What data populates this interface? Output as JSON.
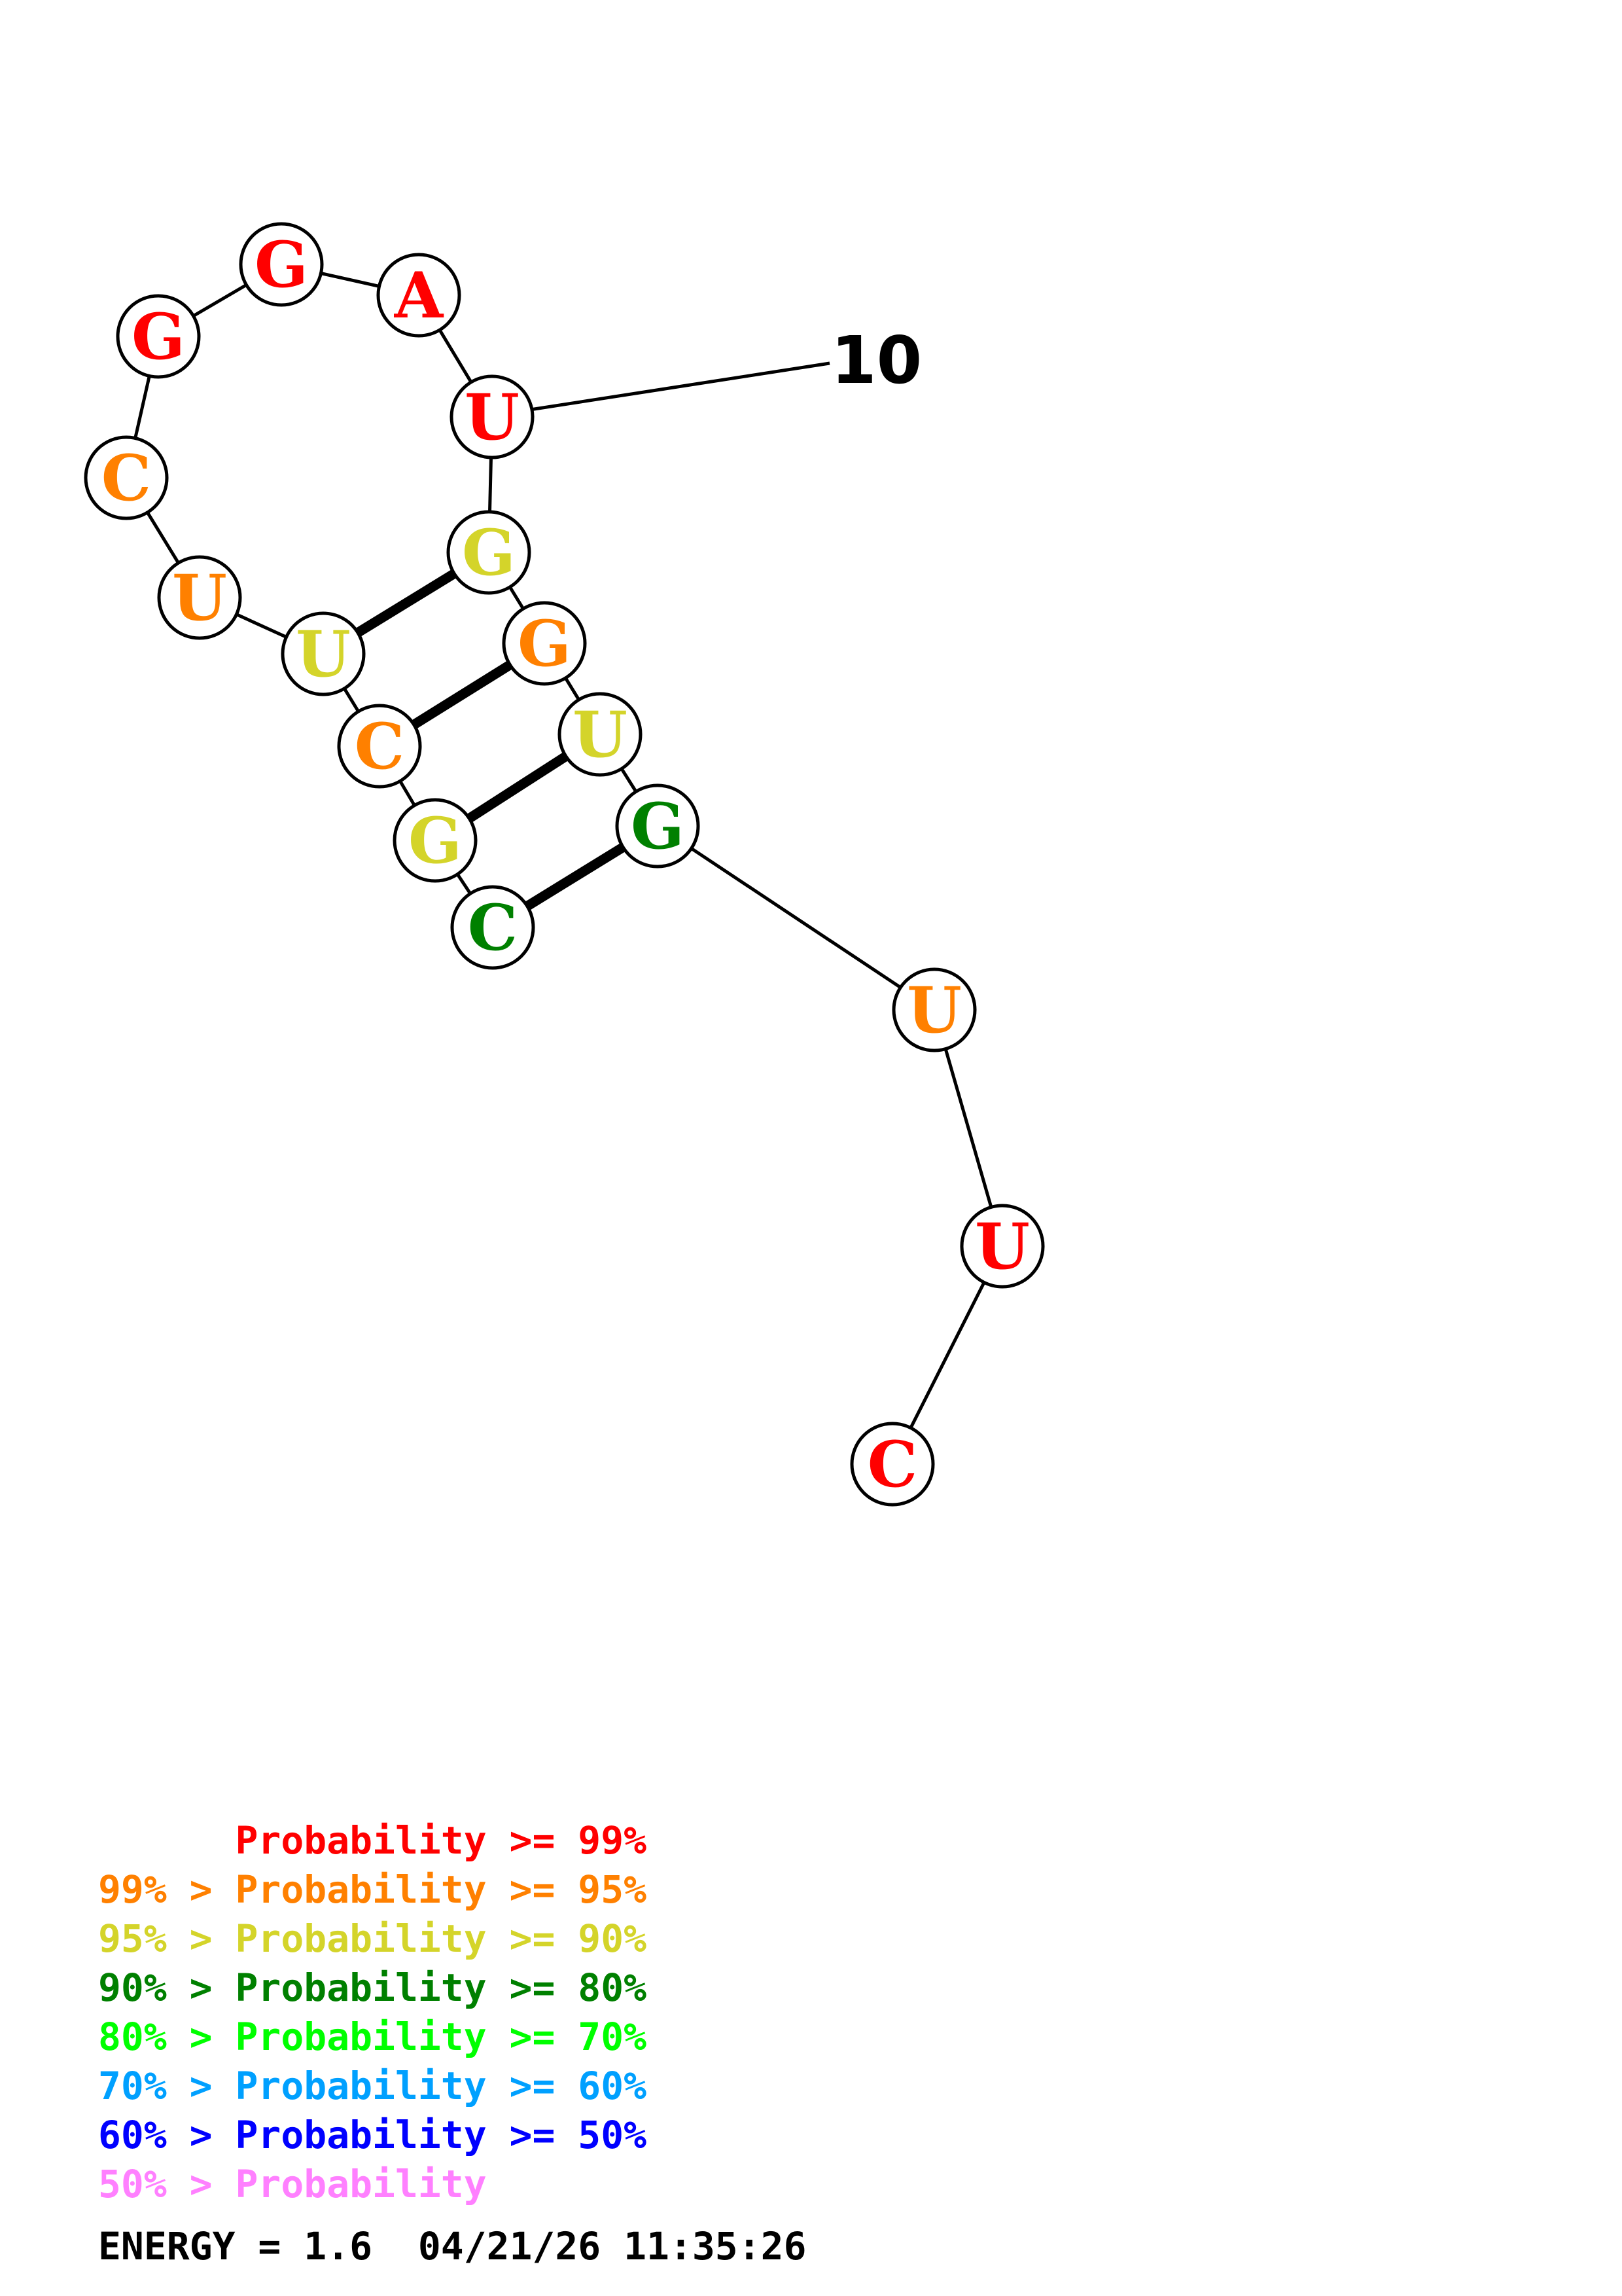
{
  "sequence": [
    {
      "index": 1,
      "base": "C",
      "color": "#008000"
    },
    {
      "index": 2,
      "base": "G",
      "color": "#d4d42a"
    },
    {
      "index": 3,
      "base": "C",
      "color": "#ff8000"
    },
    {
      "index": 4,
      "base": "U",
      "color": "#d4d42a"
    },
    {
      "index": 5,
      "base": "U",
      "color": "#ff8000"
    },
    {
      "index": 6,
      "base": "C",
      "color": "#ff8000"
    },
    {
      "index": 7,
      "base": "G",
      "color": "#ff0000"
    },
    {
      "index": 8,
      "base": "G",
      "color": "#ff0000"
    },
    {
      "index": 9,
      "base": "A",
      "color": "#ff0000"
    },
    {
      "index": 10,
      "base": "U",
      "color": "#ff0000"
    },
    {
      "index": 11,
      "base": "G",
      "color": "#d4d42a"
    },
    {
      "index": 12,
      "base": "G",
      "color": "#ff8000"
    },
    {
      "index": 13,
      "base": "U",
      "color": "#d4d42a"
    },
    {
      "index": 14,
      "base": "G",
      "color": "#008000"
    },
    {
      "index": 15,
      "base": "U",
      "color": "#ff8000"
    },
    {
      "index": 16,
      "base": "U",
      "color": "#ff0000"
    },
    {
      "index": 17,
      "base": "C",
      "color": "#ff0000"
    }
  ],
  "pairs": [
    [
      1,
      14
    ],
    [
      2,
      13
    ],
    [
      3,
      12
    ],
    [
      4,
      11
    ]
  ],
  "tick": {
    "label": "10"
  },
  "legend": {
    "rows": [
      {
        "text": "      Probability >= 99%",
        "color": "#ff0000"
      },
      {
        "text": "99% > Probability >= 95%",
        "color": "#ff8000"
      },
      {
        "text": "95% > Probability >= 90%",
        "color": "#d4d42a"
      },
      {
        "text": "90% > Probability >= 80%",
        "color": "#008000"
      },
      {
        "text": "80% > Probability >= 70%",
        "color": "#00ff00"
      },
      {
        "text": "70% > Probability >= 60%",
        "color": "#00a0ff"
      },
      {
        "text": "60% > Probability >= 50%",
        "color": "#0000ff"
      },
      {
        "text": "50% > Probability",
        "color": "#ff80ff"
      }
    ],
    "energy_line": "ENERGY = 1.6  04/21/26 11:35:26"
  }
}
